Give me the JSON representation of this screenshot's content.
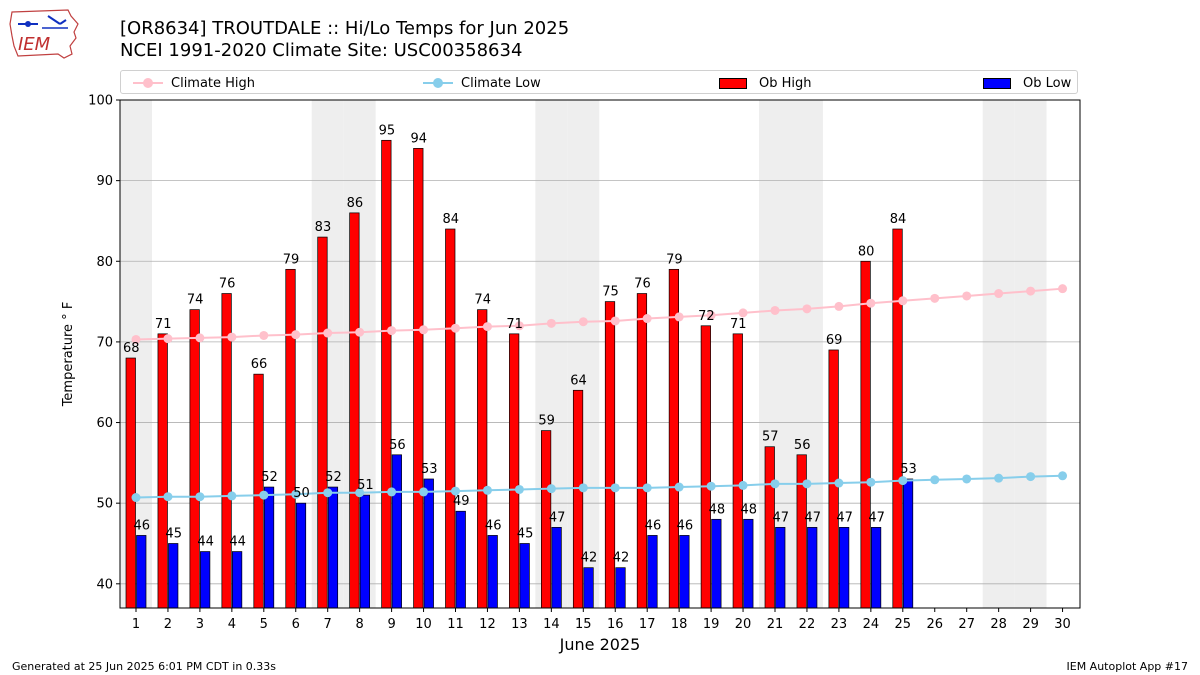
{
  "logo": {
    "text": "IEM"
  },
  "title": {
    "line1": "[OR8634] TROUTDALE :: Hi/Lo Temps for Jun 2025",
    "line2": "NCEI 1991-2020 Climate Site: USC00358634"
  },
  "footer": {
    "left": "Generated at 25 Jun 2025 6:01 PM CDT in 0.33s",
    "right": "IEM Autoplot App #17"
  },
  "colors": {
    "ob_high": "#ff0000",
    "ob_low": "#0000ff",
    "climate_high": "#ffc0cb",
    "climate_low": "#87ceeb",
    "weekend_band": "#eeeeee",
    "grid": "#b0b0b0"
  },
  "chart_data": {
    "type": "bar",
    "xlabel": "June 2025",
    "ylabel": "Temperature ° F",
    "ylim": [
      37,
      100
    ],
    "yticks": [
      40,
      50,
      60,
      70,
      80,
      90,
      100
    ],
    "grid": "horizontal",
    "legend_placement": "top",
    "days": [
      1,
      2,
      3,
      4,
      5,
      6,
      7,
      8,
      9,
      10,
      11,
      12,
      13,
      14,
      15,
      16,
      17,
      18,
      19,
      20,
      21,
      22,
      23,
      24,
      25,
      26,
      27,
      28,
      29,
      30
    ],
    "weekend_days": [
      1,
      7,
      8,
      14,
      15,
      21,
      22,
      28,
      29
    ],
    "series": [
      {
        "name": "Climate High",
        "kind": "line",
        "values": [
          70.3,
          70.4,
          70.5,
          70.6,
          70.8,
          70.9,
          71.1,
          71.2,
          71.4,
          71.5,
          71.7,
          71.9,
          72.0,
          72.3,
          72.5,
          72.6,
          72.9,
          73.1,
          73.3,
          73.6,
          73.9,
          74.1,
          74.4,
          74.8,
          75.1,
          75.4,
          75.7,
          76.0,
          76.3,
          76.6
        ]
      },
      {
        "name": "Climate Low",
        "kind": "line",
        "values": [
          50.7,
          50.8,
          50.8,
          50.9,
          51.0,
          51.1,
          51.3,
          51.3,
          51.4,
          51.4,
          51.5,
          51.6,
          51.7,
          51.8,
          51.9,
          51.9,
          51.9,
          52.0,
          52.1,
          52.2,
          52.4,
          52.4,
          52.5,
          52.6,
          52.8,
          52.9,
          53.0,
          53.1,
          53.3,
          53.4
        ]
      },
      {
        "name": "Ob High",
        "kind": "bar",
        "values": [
          68,
          71,
          74,
          76,
          66,
          79,
          83,
          86,
          95,
          94,
          84,
          74,
          71,
          59,
          64,
          75,
          76,
          79,
          72,
          71,
          57,
          56,
          69,
          80,
          84,
          null,
          null,
          null,
          null,
          null
        ]
      },
      {
        "name": "Ob Low",
        "kind": "bar",
        "values": [
          46,
          45,
          44,
          44,
          52,
          50,
          52,
          51,
          56,
          53,
          49,
          46,
          45,
          47,
          42,
          42,
          46,
          46,
          48,
          48,
          47,
          47,
          47,
          47,
          53,
          null,
          null,
          null,
          null,
          null
        ]
      }
    ]
  }
}
